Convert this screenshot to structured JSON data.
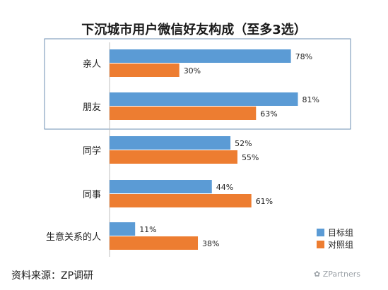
{
  "chart_data": {
    "type": "bar",
    "orientation": "horizontal",
    "title": "下沉城市用户微信好友构成（至多3选）",
    "categories": [
      "亲人",
      "朋友",
      "同学",
      "同事",
      "生意关系的人"
    ],
    "series": [
      {
        "name": "目标组",
        "values": [
          78,
          81,
          52,
          44,
          11
        ],
        "color": "#5b9bd5"
      },
      {
        "name": "对照组",
        "values": [
          30,
          63,
          55,
          61,
          38
        ],
        "color": "#ed7d31"
      }
    ],
    "value_format": "{v}%",
    "xlim": [
      0,
      100
    ],
    "grid": false,
    "legend_position": "bottom-right",
    "highlight_box_categories": [
      "亲人",
      "朋友"
    ]
  },
  "source_label": "资料来源：ZP调研",
  "watermark": "ZPartners"
}
